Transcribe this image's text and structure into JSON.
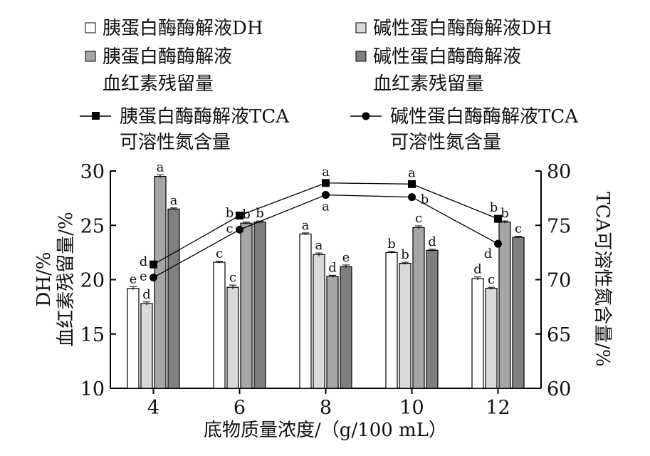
{
  "chart_data": {
    "type": "bar",
    "categories": [
      "4",
      "6",
      "8",
      "10",
      "12"
    ],
    "xlabel": "底物质量浓度/（g/100 mL）",
    "ylabel_left": [
      "DH/%",
      "血红素残留量/%"
    ],
    "ylabel_right": "TCA可溶性氮含量/%",
    "ylim_left": [
      10,
      30
    ],
    "yticks_left": [
      10,
      15,
      20,
      25,
      30
    ],
    "ylim_right": [
      60,
      80
    ],
    "yticks_right": [
      60,
      65,
      70,
      75,
      80
    ],
    "bar_series": [
      {
        "legend": [
          "胰蛋白酶酶解液DH"
        ],
        "fill": "#ffffff",
        "values": [
          19.2,
          21.6,
          24.2,
          22.5,
          20.1
        ],
        "errors": [
          0.15,
          0.1,
          0.1,
          0.1,
          0.15
        ],
        "letters": [
          "e",
          "c",
          "a",
          "b",
          "d"
        ]
      },
      {
        "legend": [
          "碱性蛋白酶酶解液DH"
        ],
        "fill": "#d9d9d9",
        "values": [
          17.8,
          19.3,
          22.3,
          21.5,
          19.2
        ],
        "errors": [
          0.15,
          0.2,
          0.15,
          0.1,
          0.1
        ],
        "letters": [
          "d",
          "c",
          "a",
          "b",
          "c"
        ]
      },
      {
        "legend": [
          "胰蛋白酶酶解液",
          "血红素残留量"
        ],
        "fill": "#a6a6a6",
        "values": [
          29.5,
          25.2,
          20.3,
          24.8,
          25.3
        ],
        "errors": [
          0.15,
          0.1,
          0.1,
          0.15,
          0.1
        ],
        "letters": [
          "a",
          "b",
          "d",
          "c",
          "b"
        ]
      },
      {
        "legend": [
          "碱性蛋白酶酶解液",
          "血红素残留量"
        ],
        "fill": "#7f7f7f",
        "values": [
          26.5,
          25.3,
          21.2,
          22.7,
          23.9
        ],
        "errors": [
          0.1,
          0.1,
          0.15,
          0.1,
          0.1
        ],
        "letters": [
          "a",
          "b",
          "e",
          "d",
          "c"
        ]
      }
    ],
    "line_series": [
      {
        "legend": [
          "胰蛋白酶酶解液TCA",
          "可溶性氮含量"
        ],
        "marker": "square",
        "values": [
          71.4,
          75.9,
          78.9,
          78.8,
          75.6
        ],
        "letters": [
          "d",
          "b",
          "a",
          "a",
          "b"
        ]
      },
      {
        "legend": [
          "碱性蛋白酶酶解液TCA",
          "可溶性氮含量"
        ],
        "marker": "circle",
        "values": [
          70.2,
          74.6,
          77.8,
          77.6,
          73.3
        ],
        "letters": [
          "e",
          "c",
          "a",
          "b",
          "d"
        ]
      }
    ]
  }
}
